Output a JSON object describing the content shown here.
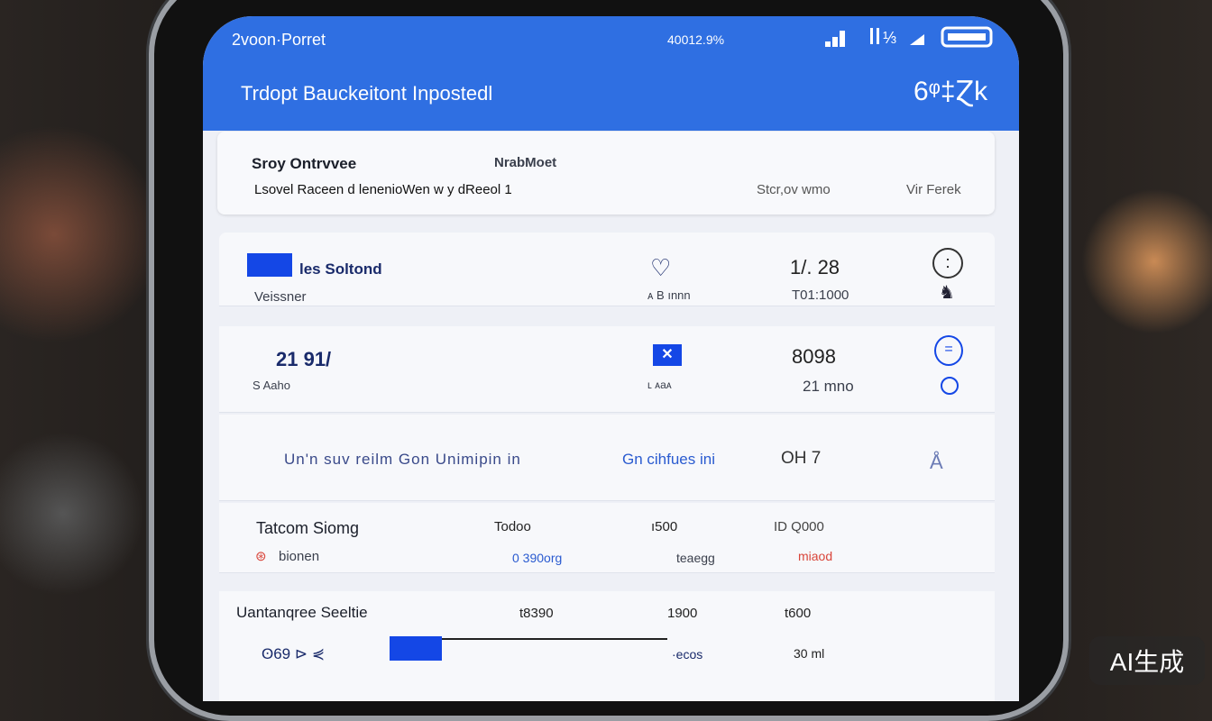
{
  "status": {
    "time": "2voon·Porret",
    "center": "40012.9%"
  },
  "header": {
    "title": "Trdopt Bauckeitont Inpostedl",
    "right": "6ᵠ‡Ɀk"
  },
  "summary": {
    "title": "Sroy Ontrvvee",
    "col2": "NrabMoet",
    "desc": "Lsovel Raceen d lenenioWen w y dReeol 1",
    "meta": "Stcr,ov wmo",
    "link": "Vir Ferek"
  },
  "rows": [
    {
      "title": "les Soltond",
      "sub": "Veissner",
      "mid": "ᴀ B ınnn",
      "value": "1/. 28",
      "sub_value": "T01:1000",
      "icons": [
        "heart-icon",
        "smiley-icon",
        "person-icon"
      ]
    },
    {
      "title": "21 91/",
      "sub": "S Aaho",
      "mid": "ʟ ᴀaᴀ",
      "value": "8098",
      "sub_value": "21 mno",
      "icons": [
        "close-icon",
        "menu-circle-icon",
        "circle-icon"
      ]
    },
    {
      "title": "Un'n suv reilm Gon Unimipin in",
      "mid": "Gn cihfues ini",
      "value": "OH 7",
      "icons": [
        "alert-icon"
      ]
    },
    {
      "title": "Tatcom Siomg",
      "col2": "Todoo",
      "col3": "ı500",
      "col4": "ID Q000",
      "sub": "bionen",
      "sub2": "0 390org",
      "sub3": "teaegg",
      "sub4": "miaod"
    },
    {
      "title": "Uantanqree Seeltie",
      "col2": "t8390",
      "col3": "1900",
      "col4": "t600",
      "sub": "ʘ69 ⊳ ⋞",
      "sub3": "·ecos",
      "sub4": "30 ml"
    }
  ],
  "colors": {
    "header": "#2f6fe2",
    "accent": "#1447e6",
    "alert": "#d9453a"
  },
  "watermark": "AI生成"
}
